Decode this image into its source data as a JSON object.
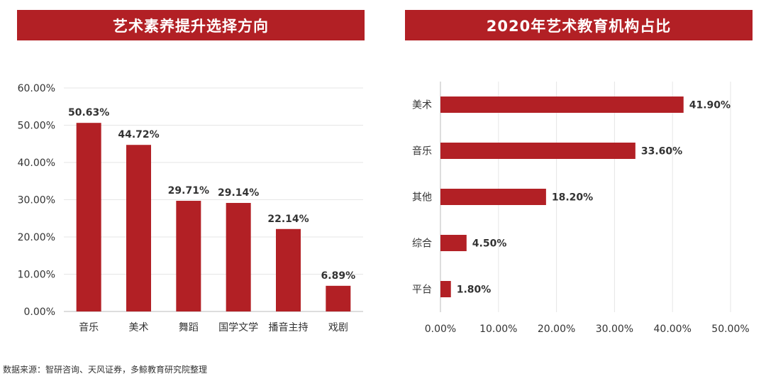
{
  "colors": {
    "accent": "#b22025",
    "grid": "#e6e6e6",
    "text": "#333333"
  },
  "chart_data": [
    {
      "type": "bar",
      "orientation": "vertical",
      "title": "艺术素养提升选择方向",
      "categories": [
        "音乐",
        "美术",
        "舞蹈",
        "国学文学",
        "播音主持",
        "戏剧"
      ],
      "values": [
        50.63,
        44.72,
        29.71,
        29.14,
        22.14,
        6.89
      ],
      "value_labels": [
        "50.63%",
        "44.72%",
        "29.71%",
        "29.14%",
        "22.14%",
        "6.89%"
      ],
      "ylim": [
        0,
        60
      ],
      "yticks": [
        "0.00%",
        "10.00%",
        "20.00%",
        "30.00%",
        "40.00%",
        "50.00%",
        "60.00%"
      ],
      "grid": true
    },
    {
      "type": "bar",
      "orientation": "horizontal",
      "title": "2020年艺术教育机构占比",
      "categories": [
        "美术",
        "音乐",
        "其他",
        "综合",
        "平台"
      ],
      "values": [
        41.9,
        33.6,
        18.2,
        4.5,
        1.8
      ],
      "value_labels": [
        "41.90%",
        "33.60%",
        "18.20%",
        "4.50%",
        "1.80%"
      ],
      "xlim": [
        0,
        50
      ],
      "xticks": [
        "0.00%",
        "10.00%",
        "20.00%",
        "30.00%",
        "40.00%",
        "50.00%"
      ],
      "grid": true
    }
  ],
  "source_note": "数据来源：智研咨询、天风证券，多鲸教育研究院整理"
}
